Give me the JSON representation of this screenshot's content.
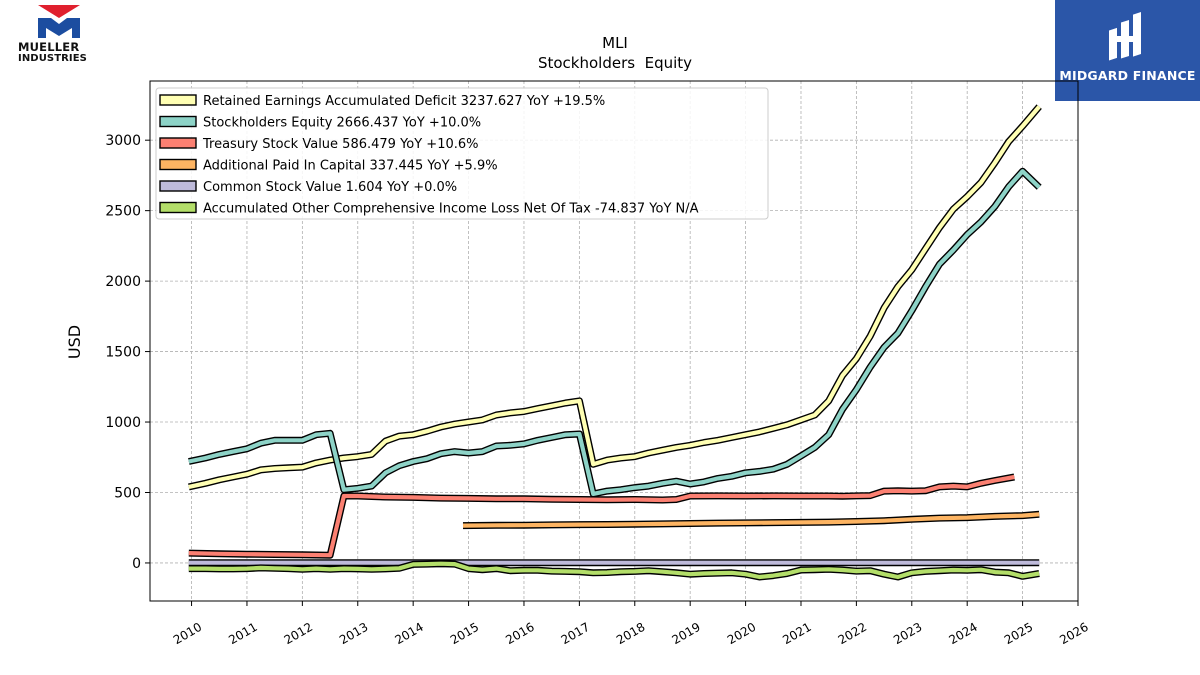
{
  "brand": {
    "left_logo": "MUELLER INDUSTRIES",
    "left_line1": "MUELLER",
    "left_line2": "INDUSTRIES",
    "right_logo": "MIDGARD FINANCE",
    "right_color": "#2b56a8",
    "left_colors": {
      "red": "#e0202e",
      "blue": "#1c4da0"
    }
  },
  "chart_data": {
    "type": "line",
    "title": "MLI",
    "subtitle": "Stockholders  Equity",
    "xlabel": "",
    "ylabel": "USD",
    "xlim": [
      2009.25,
      2026.0
    ],
    "ylim": [
      -270,
      3420
    ],
    "xticks": [
      2010,
      2011,
      2012,
      2013,
      2014,
      2015,
      2016,
      2017,
      2018,
      2019,
      2020,
      2021,
      2022,
      2023,
      2024,
      2025,
      2026
    ],
    "yticks": [
      0,
      500,
      1000,
      1500,
      2000,
      2500,
      3000
    ],
    "grid": true,
    "legend_position": "top-left",
    "series": [
      {
        "name": "Retained Earnings Accumulated Deficit",
        "legend": "Retained Earnings Accumulated Deficit  3237.627 YoY +19.5%",
        "color": "#ffffb3",
        "x": [
          2009.95,
          2010.25,
          2010.5,
          2010.75,
          2011.0,
          2011.25,
          2011.5,
          2011.75,
          2012.0,
          2012.25,
          2012.5,
          2012.75,
          2013.0,
          2013.25,
          2013.5,
          2013.75,
          2014.0,
          2014.25,
          2014.5,
          2014.75,
          2015.0,
          2015.25,
          2015.5,
          2015.75,
          2016.0,
          2016.25,
          2016.5,
          2016.75,
          2017.0,
          2017.25,
          2017.5,
          2017.75,
          2018.0,
          2018.25,
          2018.5,
          2018.75,
          2019.0,
          2019.25,
          2019.5,
          2019.75,
          2020.0,
          2020.25,
          2020.5,
          2020.75,
          2021.0,
          2021.25,
          2021.5,
          2021.75,
          2022.0,
          2022.25,
          2022.5,
          2022.75,
          2023.0,
          2023.25,
          2023.5,
          2023.75,
          2024.0,
          2024.25,
          2024.5,
          2024.75,
          2025.0,
          2025.3
        ],
        "values": [
          540,
          565,
          590,
          610,
          630,
          660,
          670,
          675,
          680,
          710,
          730,
          745,
          755,
          770,
          865,
          900,
          910,
          935,
          965,
          985,
          1000,
          1015,
          1050,
          1065,
          1075,
          1095,
          1115,
          1135,
          1150,
          700,
          730,
          745,
          755,
          780,
          800,
          820,
          835,
          855,
          870,
          890,
          910,
          930,
          955,
          980,
          1015,
          1050,
          1150,
          1330,
          1450,
          1610,
          1810,
          1960,
          2080,
          2230,
          2380,
          2510,
          2600,
          2700,
          2840,
          2990,
          3100,
          3238
        ]
      },
      {
        "name": "Stockholders Equity",
        "legend": "Stockholders Equity  2666.437 YoY +10.0%",
        "color": "#8dd3c7",
        "x": [
          2009.95,
          2010.25,
          2010.5,
          2010.75,
          2011.0,
          2011.25,
          2011.5,
          2011.75,
          2012.0,
          2012.25,
          2012.5,
          2012.75,
          2013.0,
          2013.25,
          2013.5,
          2013.75,
          2014.0,
          2014.25,
          2014.5,
          2014.75,
          2015.0,
          2015.25,
          2015.5,
          2015.75,
          2016.0,
          2016.25,
          2016.5,
          2016.75,
          2017.0,
          2017.25,
          2017.5,
          2017.75,
          2018.0,
          2018.25,
          2018.5,
          2018.75,
          2019.0,
          2019.25,
          2019.5,
          2019.75,
          2020.0,
          2020.25,
          2020.5,
          2020.75,
          2021.0,
          2021.25,
          2021.5,
          2021.75,
          2022.0,
          2022.25,
          2022.5,
          2022.75,
          2023.0,
          2023.25,
          2023.5,
          2023.75,
          2024.0,
          2024.25,
          2024.5,
          2024.75,
          2025.0,
          2025.3
        ],
        "values": [
          720,
          745,
          770,
          790,
          810,
          850,
          870,
          870,
          870,
          910,
          920,
          520,
          530,
          545,
          640,
          690,
          720,
          740,
          775,
          790,
          780,
          790,
          830,
          835,
          845,
          870,
          890,
          910,
          915,
          490,
          510,
          520,
          535,
          545,
          565,
          580,
          560,
          575,
          600,
          615,
          640,
          650,
          665,
          700,
          760,
          820,
          910,
          1090,
          1230,
          1390,
          1530,
          1630,
          1790,
          1960,
          2120,
          2220,
          2330,
          2420,
          2530,
          2670,
          2780,
          2666
        ]
      },
      {
        "name": "Treasury Stock Value",
        "legend": "Treasury Stock Value  586.479 YoY +10.6%",
        "color": "#fb8072",
        "x": [
          2009.95,
          2010.5,
          2011.0,
          2011.5,
          2012.0,
          2012.5,
          2012.75,
          2013.0,
          2013.5,
          2014.0,
          2014.5,
          2015.0,
          2015.5,
          2016.0,
          2016.5,
          2017.0,
          2017.5,
          2018.0,
          2018.5,
          2018.75,
          2019.0,
          2019.5,
          2020.0,
          2020.5,
          2021.0,
          2021.5,
          2021.75,
          2022.0,
          2022.25,
          2022.5,
          2022.75,
          2023.0,
          2023.25,
          2023.5,
          2023.75,
          2024.0,
          2024.25,
          2024.5,
          2024.85
        ],
        "values": [
          70,
          65,
          62,
          60,
          58,
          55,
          475,
          475,
          468,
          465,
          460,
          458,
          455,
          455,
          452,
          450,
          448,
          450,
          447,
          450,
          475,
          476,
          475,
          476,
          475,
          475,
          474,
          476,
          478,
          510,
          512,
          510,
          513,
          540,
          545,
          540,
          565,
          585,
          610
        ]
      },
      {
        "name": "Additional Paid In Capital",
        "legend": "Additional Paid In Capital  337.445 YoY +5.9%",
        "color": "#fdb462",
        "x": [
          2014.9,
          2015.5,
          2016.0,
          2016.5,
          2017.0,
          2017.5,
          2018.0,
          2018.5,
          2019.0,
          2019.5,
          2020.0,
          2020.5,
          2021.0,
          2021.5,
          2022.0,
          2022.5,
          2023.0,
          2023.5,
          2024.0,
          2024.5,
          2025.0,
          2025.3
        ],
        "values": [
          265,
          267,
          268,
          270,
          272,
          273,
          275,
          277,
          280,
          283,
          284,
          286,
          288,
          290,
          294,
          300,
          310,
          318,
          322,
          330,
          336,
          345
        ]
      },
      {
        "name": "Common Stock Value",
        "legend": "Common Stock Value  1.604 YoY +0.0%",
        "color": "#bebada",
        "x": [
          2009.95,
          2025.3
        ],
        "values": [
          1.604,
          1.604
        ]
      },
      {
        "name": "Accumulated Other Comprehensive Income Loss Net Of Tax",
        "legend": "Accumulated Other Comprehensive Income Loss Net Of Tax  -74.837 YoY N/A",
        "color": "#b3de69",
        "x": [
          2009.95,
          2010.25,
          2010.5,
          2010.75,
          2011.0,
          2011.25,
          2011.5,
          2011.75,
          2012.0,
          2012.25,
          2012.5,
          2012.75,
          2013.0,
          2013.25,
          2013.5,
          2013.75,
          2014.0,
          2014.25,
          2014.5,
          2014.75,
          2015.0,
          2015.25,
          2015.5,
          2015.75,
          2016.0,
          2016.25,
          2016.5,
          2016.75,
          2017.0,
          2017.25,
          2017.5,
          2017.75,
          2018.0,
          2018.25,
          2018.5,
          2018.75,
          2019.0,
          2019.25,
          2019.5,
          2019.75,
          2020.0,
          2020.25,
          2020.5,
          2020.75,
          2021.0,
          2021.25,
          2021.5,
          2021.75,
          2022.0,
          2022.25,
          2022.5,
          2022.75,
          2023.0,
          2023.25,
          2023.5,
          2023.75,
          2024.0,
          2024.25,
          2024.5,
          2024.75,
          2025.0,
          2025.3
        ],
        "values": [
          -40,
          -40,
          -42,
          -42,
          -40,
          -35,
          -38,
          -40,
          -45,
          -40,
          -45,
          -40,
          -42,
          -45,
          -42,
          -38,
          -10,
          -8,
          -5,
          -8,
          -40,
          -48,
          -40,
          -55,
          -52,
          -52,
          -58,
          -60,
          -62,
          -70,
          -68,
          -62,
          -60,
          -55,
          -62,
          -70,
          -80,
          -75,
          -72,
          -70,
          -80,
          -100,
          -90,
          -75,
          -50,
          -48,
          -45,
          -50,
          -58,
          -55,
          -80,
          -100,
          -70,
          -60,
          -55,
          -50,
          -52,
          -48,
          -65,
          -70,
          -95,
          -75
        ]
      }
    ]
  }
}
